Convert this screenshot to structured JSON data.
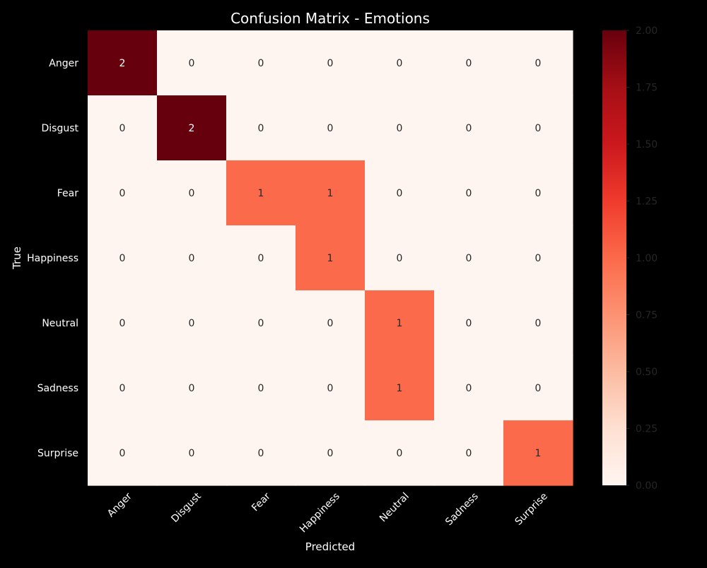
{
  "chart_data": {
    "type": "heatmap",
    "title": "Confusion Matrix - Emotions",
    "xlabel": "Predicted",
    "ylabel": "True",
    "x_categories": [
      "Anger",
      "Disgust",
      "Fear",
      "Happiness",
      "Neutral",
      "Sadness",
      "Surprise"
    ],
    "y_categories": [
      "Anger",
      "Disgust",
      "Fear",
      "Happiness",
      "Neutral",
      "Sadness",
      "Surprise"
    ],
    "values": [
      [
        2,
        0,
        0,
        0,
        0,
        0,
        0
      ],
      [
        0,
        2,
        0,
        0,
        0,
        0,
        0
      ],
      [
        0,
        0,
        1,
        1,
        0,
        0,
        0
      ],
      [
        0,
        0,
        0,
        1,
        0,
        0,
        0
      ],
      [
        0,
        0,
        0,
        0,
        1,
        0,
        0
      ],
      [
        0,
        0,
        0,
        0,
        1,
        0,
        0
      ],
      [
        0,
        0,
        0,
        0,
        0,
        0,
        1
      ]
    ],
    "colormap": "Reds",
    "colorbar": {
      "range": [
        0,
        2
      ],
      "ticks": [
        "0.00",
        "0.25",
        "0.50",
        "0.75",
        "1.00",
        "1.25",
        "1.50",
        "1.75",
        "2.00"
      ]
    },
    "colors": {
      "background": "#000000",
      "text": "#ffffff",
      "cell_zero": "#fff5f0",
      "cell_one": "#fb6a4a",
      "cell_two": "#67000d",
      "colorbar_tick_text": "#262626"
    }
  }
}
